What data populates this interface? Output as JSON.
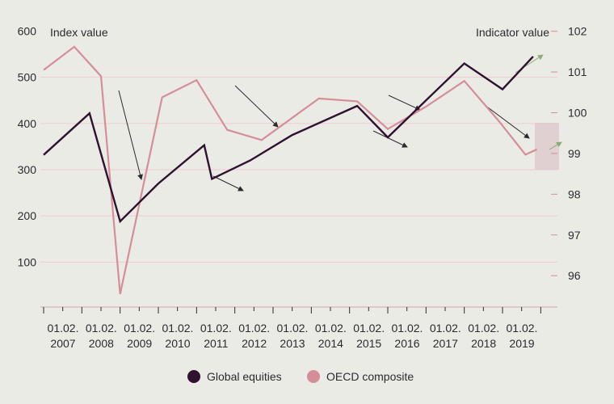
{
  "chart_data": {
    "type": "line",
    "x_tick_labels": [
      [
        "01.02.",
        "2007"
      ],
      [
        "01.02.",
        "2008"
      ],
      [
        "01.02.",
        "2009"
      ],
      [
        "01.02.",
        "2010"
      ],
      [
        "01.02.",
        "2011"
      ],
      [
        "01.02.",
        "2012"
      ],
      [
        "01.02.",
        "2013"
      ],
      [
        "01.02.",
        "2014"
      ],
      [
        "01.02.",
        "2015"
      ],
      [
        "01.02.",
        "2016"
      ],
      [
        "01.02.",
        "2017"
      ],
      [
        "01.02.",
        "2018"
      ],
      [
        "01.02.",
        "2019"
      ]
    ],
    "left_axis": {
      "title": "Index value",
      "ticks": [
        100,
        200,
        300,
        400,
        500,
        600
      ],
      "range": [
        0,
        600
      ]
    },
    "right_axis": {
      "title": "Indicator value",
      "ticks": [
        96,
        97,
        98,
        99,
        100,
        101,
        102
      ],
      "range": [
        95.2,
        102
      ]
    },
    "series": [
      {
        "name": "Global equities",
        "axis": "left",
        "color": "#2e1230",
        "x": [
          2007.0,
          2008.2,
          2009.0,
          2010.0,
          2011.2,
          2011.4,
          2012.4,
          2013.5,
          2015.2,
          2016.0,
          2017.0,
          2018.0,
          2019.0,
          2019.8
        ],
        "values": [
          332,
          422,
          188,
          270,
          353,
          280,
          320,
          375,
          438,
          370,
          450,
          530,
          474,
          545
        ]
      },
      {
        "name": "OECD composite",
        "axis": "right",
        "color": "#d58e98",
        "x": [
          2007.0,
          2007.8,
          2008.5,
          2009.0,
          2010.1,
          2011.0,
          2011.8,
          2012.7,
          2014.2,
          2015.2,
          2016.0,
          2017.0,
          2018.0,
          2018.9,
          2019.6,
          2019.9
        ],
        "values": [
          101.05,
          101.62,
          100.9,
          95.55,
          100.38,
          100.8,
          99.58,
          99.33,
          100.35,
          100.28,
          99.6,
          100.15,
          100.78,
          99.8,
          98.97,
          99.1
        ]
      }
    ],
    "legend": {
      "position": "bottom-center",
      "entries": [
        "Global equities",
        "OECD composite"
      ]
    },
    "gridlines": true
  }
}
